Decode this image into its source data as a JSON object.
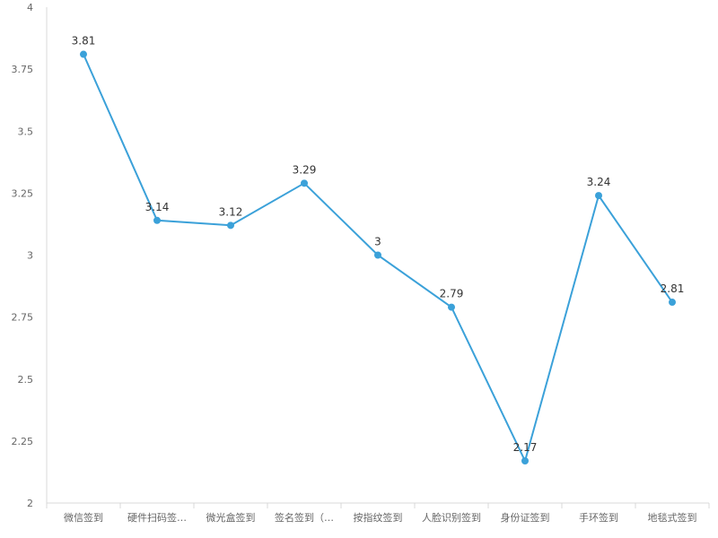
{
  "chart_data": {
    "type": "line",
    "title": "",
    "xlabel": "",
    "ylabel": "",
    "categories": [
      "微信签到",
      "硬件扫码签…",
      "微光盒签到",
      "签名签到（…",
      "按指纹签到",
      "人脸识别签到",
      "身份证签到",
      "手环签到",
      "地毯式签到"
    ],
    "series": [
      {
        "values": [
          3.81,
          3.14,
          3.12,
          3.29,
          3,
          2.79,
          2.17,
          3.24,
          2.81
        ]
      }
    ],
    "data_labels": [
      "3.81",
      "3.14",
      "3.12",
      "3.29",
      "3",
      "2.79",
      "2.17",
      "3.24",
      "2.81"
    ],
    "ylim": [
      2,
      4
    ],
    "yticks": [
      2,
      2.25,
      2.5,
      2.75,
      3,
      3.25,
      3.5,
      3.75,
      4
    ],
    "ytick_labels": [
      "2",
      "2.25",
      "2.5",
      "2.75",
      "3",
      "3.25",
      "3.5",
      "3.75",
      "4"
    ],
    "grid": false,
    "colors": {
      "line": "#3ba1d9",
      "axis": "#d9d9d9",
      "tick_text": "#666666",
      "label_text": "#333333"
    }
  }
}
